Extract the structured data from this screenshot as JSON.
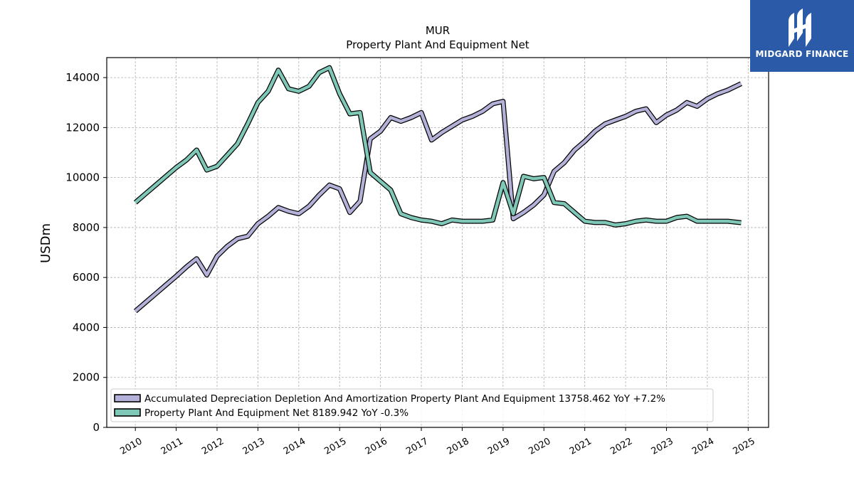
{
  "brand": {
    "name": "MIDGARD FINANCE",
    "color": "#2b5aa8"
  },
  "chart_data": {
    "type": "line",
    "title": "MUR",
    "subtitle": "Property Plant And Equipment Net",
    "ylabel": "USDm",
    "xlabel": "",
    "ylim": [
      0,
      14800
    ],
    "xlim": [
      2009.3,
      2025.5
    ],
    "yticks": [
      "0",
      "2000",
      "4000",
      "6000",
      "8000",
      "10000",
      "12000",
      "14000"
    ],
    "xticks": [
      "2010",
      "2011",
      "2012",
      "2013",
      "2014",
      "2015",
      "2016",
      "2017",
      "2018",
      "2019",
      "2020",
      "2021",
      "2022",
      "2023",
      "2024",
      "2025"
    ],
    "grid": true,
    "legend_position": "lower-left",
    "series": [
      {
        "name": "Accumulated Depreciation Depletion And Amortization Property Plant And Equipment",
        "legend_label": "Accumulated Depreciation Depletion And Amortization Property Plant And Equipment  13758.462 YoY +7.2%",
        "color": "#b3b1d8",
        "points": [
          [
            2010.0,
            4650
          ],
          [
            2010.25,
            5000
          ],
          [
            2010.5,
            5350
          ],
          [
            2010.75,
            5700
          ],
          [
            2011.0,
            6050
          ],
          [
            2011.25,
            6420
          ],
          [
            2011.5,
            6750
          ],
          [
            2011.75,
            6100
          ],
          [
            2012.0,
            6850
          ],
          [
            2012.25,
            7250
          ],
          [
            2012.5,
            7550
          ],
          [
            2012.75,
            7650
          ],
          [
            2013.0,
            8150
          ],
          [
            2013.25,
            8450
          ],
          [
            2013.5,
            8800
          ],
          [
            2013.75,
            8650
          ],
          [
            2014.0,
            8550
          ],
          [
            2014.25,
            8850
          ],
          [
            2014.5,
            9300
          ],
          [
            2014.75,
            9700
          ],
          [
            2015.0,
            9550
          ],
          [
            2015.25,
            8600
          ],
          [
            2015.5,
            9050
          ],
          [
            2015.75,
            11550
          ],
          [
            2016.0,
            11850
          ],
          [
            2016.25,
            12400
          ],
          [
            2016.5,
            12250
          ],
          [
            2016.75,
            12400
          ],
          [
            2017.0,
            12600
          ],
          [
            2017.25,
            11500
          ],
          [
            2017.5,
            11800
          ],
          [
            2017.75,
            12050
          ],
          [
            2018.0,
            12300
          ],
          [
            2018.25,
            12450
          ],
          [
            2018.5,
            12650
          ],
          [
            2018.75,
            12950
          ],
          [
            2019.0,
            13050
          ],
          [
            2019.25,
            8350
          ],
          [
            2019.5,
            8600
          ],
          [
            2019.75,
            8900
          ],
          [
            2020.0,
            9300
          ],
          [
            2020.25,
            10250
          ],
          [
            2020.5,
            10600
          ],
          [
            2020.75,
            11100
          ],
          [
            2021.0,
            11450
          ],
          [
            2021.25,
            11850
          ],
          [
            2021.5,
            12150
          ],
          [
            2021.75,
            12300
          ],
          [
            2022.0,
            12450
          ],
          [
            2022.25,
            12650
          ],
          [
            2022.5,
            12750
          ],
          [
            2022.75,
            12200
          ],
          [
            2023.0,
            12500
          ],
          [
            2023.25,
            12700
          ],
          [
            2023.5,
            13000
          ],
          [
            2023.75,
            12850
          ],
          [
            2024.0,
            13150
          ],
          [
            2024.25,
            13350
          ],
          [
            2024.5,
            13500
          ],
          [
            2024.83,
            13758
          ]
        ]
      },
      {
        "name": "Property Plant And Equipment Net",
        "legend_label": "Property Plant And Equipment Net  8189.942 YoY -0.3%",
        "color": "#7fc8b8",
        "points": [
          [
            2010.0,
            9000
          ],
          [
            2010.25,
            9350
          ],
          [
            2010.5,
            9700
          ],
          [
            2010.75,
            10050
          ],
          [
            2011.0,
            10400
          ],
          [
            2011.25,
            10700
          ],
          [
            2011.5,
            11100
          ],
          [
            2011.75,
            10300
          ],
          [
            2012.0,
            10450
          ],
          [
            2012.25,
            10900
          ],
          [
            2012.5,
            11350
          ],
          [
            2012.75,
            12150
          ],
          [
            2013.0,
            13000
          ],
          [
            2013.25,
            13450
          ],
          [
            2013.5,
            14300
          ],
          [
            2013.75,
            13550
          ],
          [
            2014.0,
            13450
          ],
          [
            2014.25,
            13650
          ],
          [
            2014.5,
            14200
          ],
          [
            2014.75,
            14400
          ],
          [
            2015.0,
            13350
          ],
          [
            2015.25,
            12550
          ],
          [
            2015.5,
            12600
          ],
          [
            2015.75,
            10200
          ],
          [
            2016.0,
            9850
          ],
          [
            2016.25,
            9500
          ],
          [
            2016.5,
            8550
          ],
          [
            2016.75,
            8400
          ],
          [
            2017.0,
            8300
          ],
          [
            2017.25,
            8250
          ],
          [
            2017.5,
            8150
          ],
          [
            2017.75,
            8300
          ],
          [
            2018.0,
            8250
          ],
          [
            2018.25,
            8250
          ],
          [
            2018.5,
            8250
          ],
          [
            2018.75,
            8300
          ],
          [
            2019.0,
            9800
          ],
          [
            2019.25,
            8550
          ],
          [
            2019.5,
            10050
          ],
          [
            2019.75,
            9950
          ],
          [
            2020.0,
            10000
          ],
          [
            2020.25,
            9000
          ],
          [
            2020.5,
            8950
          ],
          [
            2020.75,
            8600
          ],
          [
            2021.0,
            8250
          ],
          [
            2021.25,
            8200
          ],
          [
            2021.5,
            8200
          ],
          [
            2021.75,
            8100
          ],
          [
            2022.0,
            8150
          ],
          [
            2022.25,
            8250
          ],
          [
            2022.5,
            8300
          ],
          [
            2022.75,
            8250
          ],
          [
            2023.0,
            8250
          ],
          [
            2023.25,
            8400
          ],
          [
            2023.5,
            8450
          ],
          [
            2023.75,
            8250
          ],
          [
            2024.0,
            8250
          ],
          [
            2024.25,
            8250
          ],
          [
            2024.5,
            8250
          ],
          [
            2024.83,
            8190
          ]
        ]
      }
    ]
  }
}
